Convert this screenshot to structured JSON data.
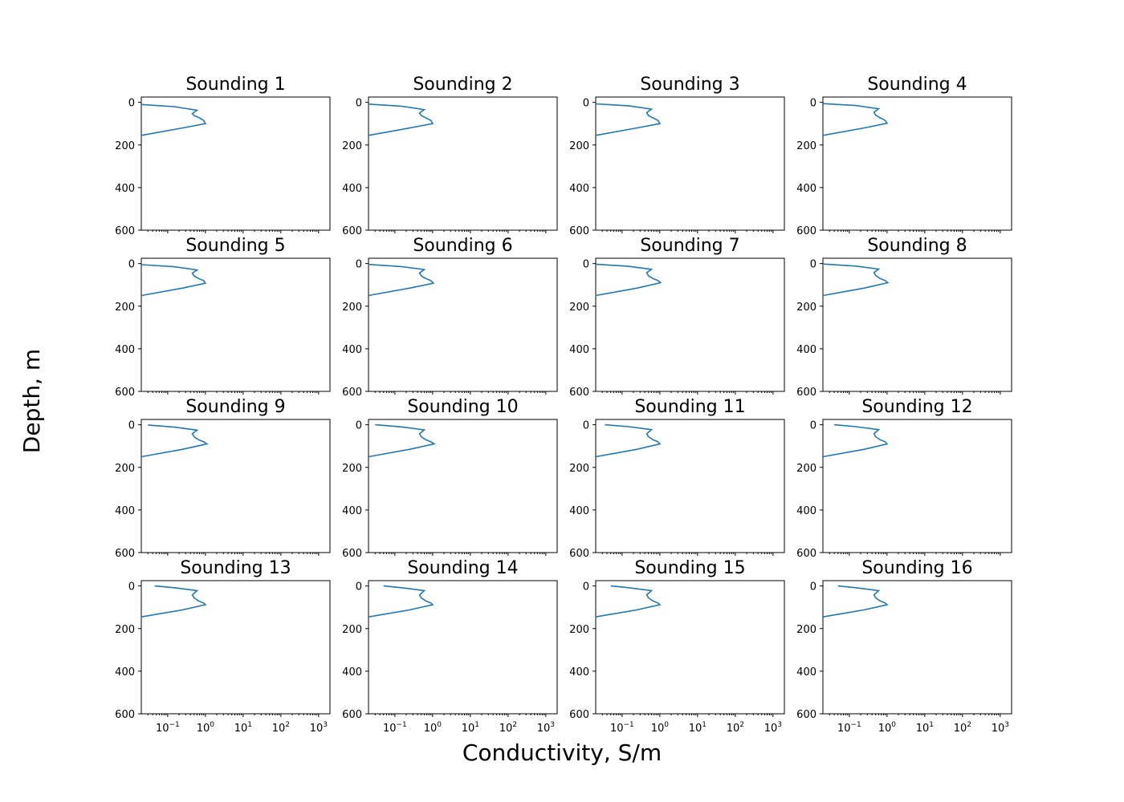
{
  "chart_data": {
    "type": "line",
    "layout": "4x4 small multiples",
    "xlabel": "Conductivity, S/m",
    "ylabel": "Depth, m",
    "xscale": "log",
    "xlim": [
      0.02,
      2000
    ],
    "ylim": [
      600,
      -25
    ],
    "y_inverted": true,
    "x_ticks": [
      0.1,
      1,
      10,
      100,
      1000
    ],
    "x_tick_labels": [
      {
        "base": "10",
        "exp": "−1"
      },
      {
        "base": "10",
        "exp": "0"
      },
      {
        "base": "10",
        "exp": "1"
      },
      {
        "base": "10",
        "exp": "2"
      },
      {
        "base": "10",
        "exp": "3"
      }
    ],
    "y_ticks": [
      0,
      200,
      400,
      600
    ],
    "y_tick_labels": [
      "0",
      "200",
      "400",
      "600"
    ],
    "grid": false,
    "series_color": "#1f77b4",
    "panels": [
      {
        "title": "Sounding 1",
        "depth": [
          10,
          20,
          37,
          52,
          62,
          70,
          85,
          100,
          120,
          155
        ],
        "sigma": [
          0.02,
          0.15,
          0.6,
          0.45,
          0.5,
          0.65,
          0.9,
          1.0,
          0.25,
          0.02
        ]
      },
      {
        "title": "Sounding 2",
        "depth": [
          8,
          18,
          34,
          50,
          62,
          72,
          85,
          100,
          120,
          155
        ],
        "sigma": [
          0.02,
          0.15,
          0.6,
          0.45,
          0.5,
          0.65,
          0.9,
          1.0,
          0.25,
          0.02
        ]
      },
      {
        "title": "Sounding 3",
        "depth": [
          7,
          16,
          32,
          48,
          62,
          72,
          85,
          100,
          120,
          155
        ],
        "sigma": [
          0.02,
          0.15,
          0.6,
          0.45,
          0.5,
          0.65,
          0.9,
          1.0,
          0.25,
          0.02
        ]
      },
      {
        "title": "Sounding 4",
        "depth": [
          6,
          15,
          30,
          46,
          60,
          72,
          85,
          98,
          120,
          155
        ],
        "sigma": [
          0.02,
          0.15,
          0.6,
          0.45,
          0.5,
          0.65,
          0.9,
          1.0,
          0.25,
          0.02
        ]
      },
      {
        "title": "Sounding 5",
        "depth": [
          5,
          15,
          30,
          45,
          58,
          70,
          80,
          92,
          115,
          150
        ],
        "sigma": [
          0.02,
          0.15,
          0.6,
          0.45,
          0.5,
          0.65,
          0.9,
          1.0,
          0.25,
          0.02
        ]
      },
      {
        "title": "Sounding 6",
        "depth": [
          4,
          14,
          28,
          44,
          58,
          70,
          80,
          92,
          115,
          150
        ],
        "sigma": [
          0.02,
          0.15,
          0.6,
          0.45,
          0.5,
          0.65,
          0.9,
          1.05,
          0.25,
          0.02
        ]
      },
      {
        "title": "Sounding 7",
        "depth": [
          3,
          13,
          27,
          43,
          57,
          70,
          80,
          90,
          115,
          150
        ],
        "sigma": [
          0.02,
          0.15,
          0.6,
          0.45,
          0.5,
          0.65,
          0.9,
          1.05,
          0.25,
          0.02
        ]
      },
      {
        "title": "Sounding 8",
        "depth": [
          2,
          12,
          26,
          42,
          56,
          70,
          80,
          90,
          115,
          150
        ],
        "sigma": [
          0.02,
          0.15,
          0.6,
          0.45,
          0.5,
          0.65,
          0.9,
          1.05,
          0.25,
          0.02
        ]
      },
      {
        "title": "Sounding 9",
        "depth": [
          1,
          11,
          25,
          42,
          56,
          70,
          80,
          90,
          115,
          150
        ],
        "sigma": [
          0.03,
          0.15,
          0.6,
          0.45,
          0.5,
          0.65,
          0.9,
          1.1,
          0.25,
          0.02
        ]
      },
      {
        "title": "Sounding 10",
        "depth": [
          0,
          10,
          24,
          42,
          56,
          70,
          80,
          90,
          115,
          150
        ],
        "sigma": [
          0.03,
          0.15,
          0.6,
          0.45,
          0.5,
          0.65,
          0.9,
          1.1,
          0.25,
          0.02
        ]
      },
      {
        "title": "Sounding 11",
        "depth": [
          0,
          9,
          23,
          42,
          56,
          70,
          80,
          90,
          115,
          150
        ],
        "sigma": [
          0.035,
          0.15,
          0.6,
          0.45,
          0.5,
          0.65,
          0.9,
          1.0,
          0.25,
          0.02
        ]
      },
      {
        "title": "Sounding 12",
        "depth": [
          0,
          9,
          23,
          42,
          56,
          70,
          80,
          90,
          115,
          150
        ],
        "sigma": [
          0.04,
          0.15,
          0.6,
          0.45,
          0.5,
          0.65,
          0.9,
          1.0,
          0.25,
          0.02
        ]
      },
      {
        "title": "Sounding 13",
        "depth": [
          0,
          8,
          22,
          42,
          56,
          70,
          80,
          88,
          112,
          145
        ],
        "sigma": [
          0.045,
          0.15,
          0.6,
          0.45,
          0.5,
          0.65,
          0.9,
          1.0,
          0.25,
          0.02
        ]
      },
      {
        "title": "Sounding 14",
        "depth": [
          0,
          8,
          22,
          42,
          56,
          70,
          80,
          88,
          112,
          145
        ],
        "sigma": [
          0.05,
          0.15,
          0.6,
          0.45,
          0.5,
          0.65,
          0.9,
          1.0,
          0.25,
          0.02
        ]
      },
      {
        "title": "Sounding 15",
        "depth": [
          0,
          8,
          22,
          42,
          56,
          70,
          80,
          88,
          112,
          145
        ],
        "sigma": [
          0.05,
          0.15,
          0.6,
          0.45,
          0.5,
          0.65,
          0.9,
          1.0,
          0.25,
          0.02
        ]
      },
      {
        "title": "Sounding 16",
        "depth": [
          0,
          8,
          22,
          42,
          56,
          70,
          80,
          88,
          112,
          145
        ],
        "sigma": [
          0.05,
          0.15,
          0.6,
          0.45,
          0.5,
          0.65,
          0.9,
          1.0,
          0.25,
          0.02
        ]
      }
    ]
  }
}
